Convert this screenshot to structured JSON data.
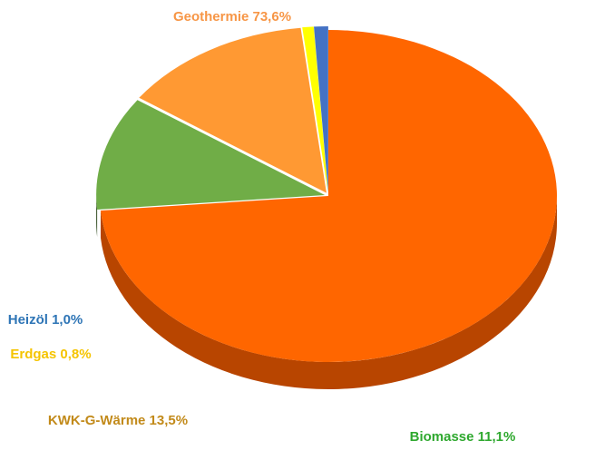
{
  "chart_data": {
    "type": "pie",
    "title": "",
    "slices": [
      {
        "name": "Geothermie",
        "value": 73.6,
        "label": "Geothermie 73,6%",
        "color": "#FF6600",
        "side": "#B84500",
        "label_color": "#F79646"
      },
      {
        "name": "Biomasse",
        "value": 11.1,
        "label": "Biomasse 11,1%",
        "color": "#70AD47",
        "side": "#2E4A1E",
        "label_color": "#2EA82E"
      },
      {
        "name": "KWK-G-Wärme",
        "value": 13.5,
        "label": "KWK-G-Wärme 13,5%",
        "color": "#FF9933",
        "side": "#9A5A1C",
        "label_color": "#C28A1A"
      },
      {
        "name": "Erdgas",
        "value": 0.8,
        "label": "Erdgas 0,8%",
        "color": "#FFFF00",
        "side": "#B8B800",
        "label_color": "#F5C400"
      },
      {
        "name": "Heizöl",
        "value": 1.0,
        "label": "Heizöl 1,0%",
        "color": "#4472C4",
        "side": "#2B4C8A",
        "label_color": "#2E75B6"
      }
    ],
    "legend": "none",
    "style": "3d-exploded-pie"
  }
}
